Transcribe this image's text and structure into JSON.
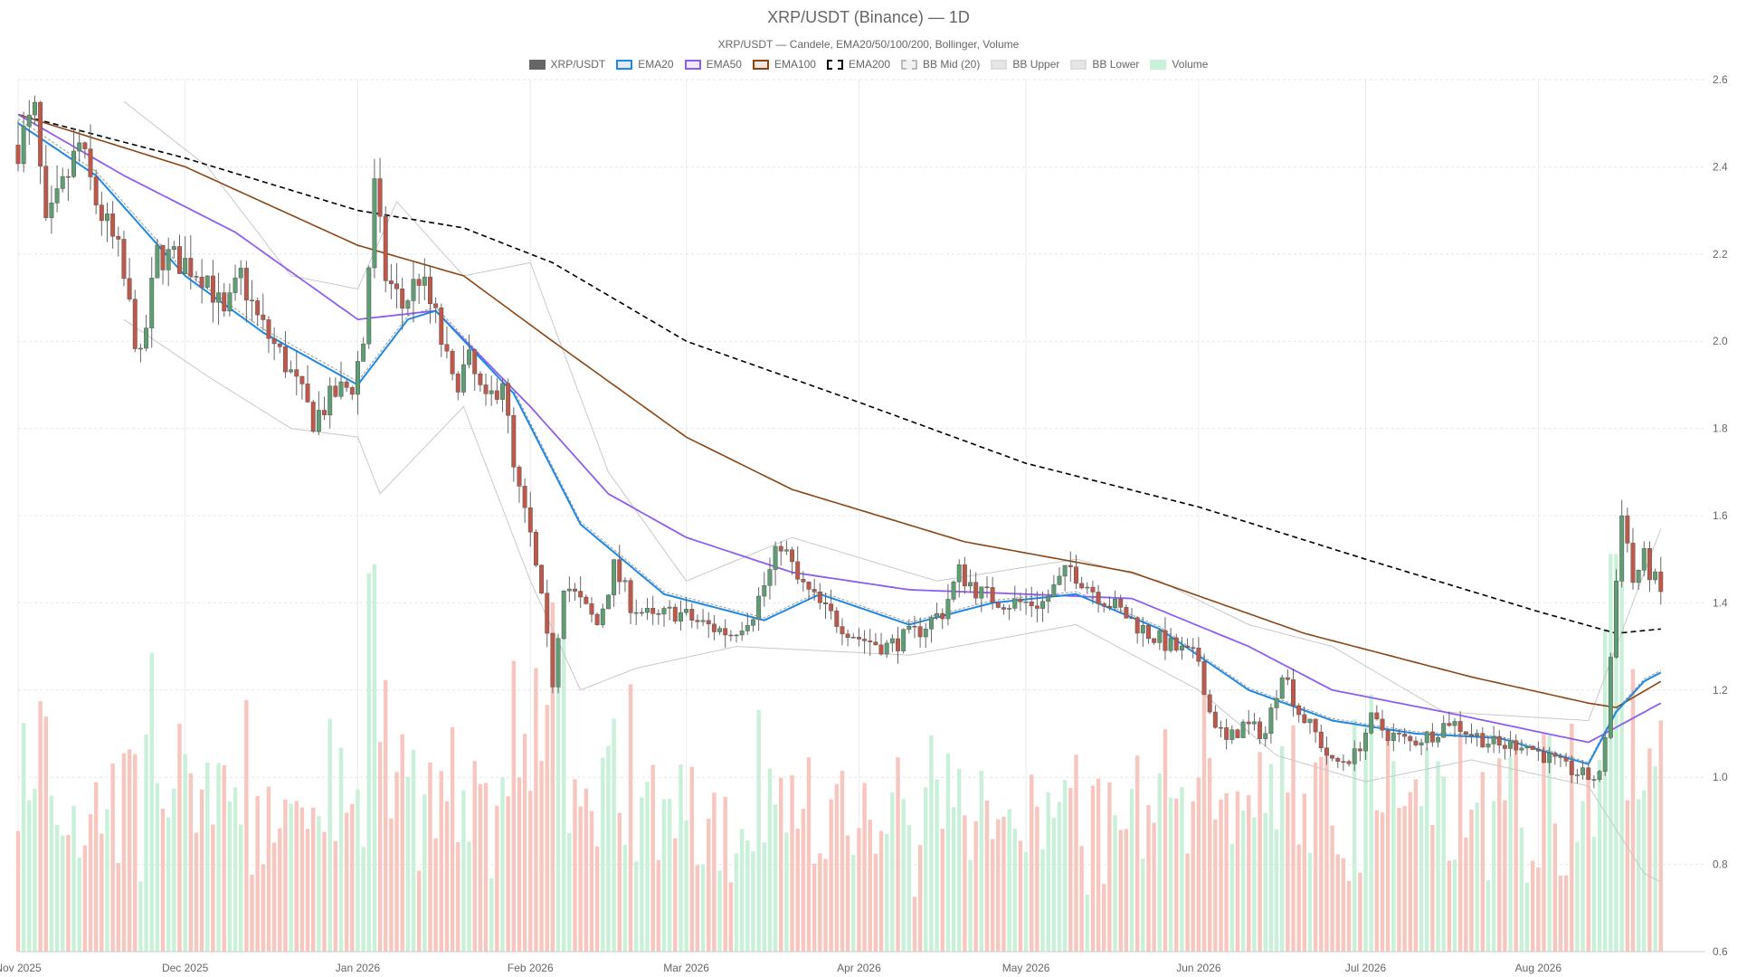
{
  "title": "XRP/USDT (Binance) — 1D",
  "subtitle": "XRP/USDT — Candele, EMA20/50/100/200, Bollinger, Volume",
  "legend": [
    {
      "label": "XRP/USDT",
      "fill": "#666666",
      "stroke": "#666666",
      "dash": false
    },
    {
      "label": "EMA20",
      "fill": "#e3eaf3",
      "stroke": "#1e88e5",
      "dash": false
    },
    {
      "label": "EMA50",
      "fill": "#efe9f8",
      "stroke": "#8e5cf0",
      "dash": false
    },
    {
      "label": "EMA100",
      "fill": "#f1e6e0",
      "stroke": "#8b4513",
      "dash": false
    },
    {
      "label": "EMA200",
      "fill": "#ffffff",
      "stroke": "#000000",
      "dash": true
    },
    {
      "label": "BB Mid (20)",
      "fill": "#f2f2f2",
      "stroke": "#bbbbbb",
      "dash": true
    },
    {
      "label": "BB Upper",
      "fill": "#e6e6e6",
      "stroke": "#dddddd",
      "dash": false
    },
    {
      "label": "BB Lower",
      "fill": "#e6e6e6",
      "stroke": "#dddddd",
      "dash": false
    },
    {
      "label": "Volume",
      "fill": "#c9f0d8",
      "stroke": "#c9f0d8",
      "dash": false
    }
  ],
  "colors": {
    "up": "#5e9e73",
    "down": "#c0584a",
    "vol_up": "#c9f0d8",
    "vol_down": "#f7c7bf",
    "grid": "#e6e6e6"
  },
  "chart_data": {
    "type": "candlestick",
    "x_start": "2025-11-01",
    "x_end": "2026-08-31",
    "ylim": [
      0.6,
      2.6
    ],
    "y_ticks": [
      "0.6",
      "0.8",
      "1.0",
      "1.2",
      "1.4",
      "1.6",
      "1.8",
      "2.0",
      "2.2",
      "2.4",
      "2.6"
    ],
    "x_ticks": [
      {
        "date": "2025-11-01",
        "label": "Nov 2025"
      },
      {
        "date": "2025-12-01",
        "label": "Dec 2025"
      },
      {
        "date": "2026-01-01",
        "label": "Jan 2026"
      },
      {
        "date": "2026-02-01",
        "label": "Feb 2026"
      },
      {
        "date": "2026-03-01",
        "label": "Mar 2026"
      },
      {
        "date": "2026-04-01",
        "label": "Apr 2026"
      },
      {
        "date": "2026-05-01",
        "label": "May 2026"
      },
      {
        "date": "2026-06-01",
        "label": "Jun 2026"
      },
      {
        "date": "2026-07-01",
        "label": "Jul 2026"
      },
      {
        "date": "2026-08-01",
        "label": "Aug 2026"
      }
    ],
    "close_anchors": [
      [
        "2025-11-01",
        2.45
      ],
      [
        "2025-11-04",
        2.52
      ],
      [
        "2025-11-06",
        2.25
      ],
      [
        "2025-11-09",
        2.35
      ],
      [
        "2025-11-12",
        2.45
      ],
      [
        "2025-11-15",
        2.32
      ],
      [
        "2025-11-19",
        2.2
      ],
      [
        "2025-11-23",
        1.95
      ],
      [
        "2025-11-26",
        2.2
      ],
      [
        "2025-12-01",
        2.18
      ],
      [
        "2025-12-05",
        2.15
      ],
      [
        "2025-12-08",
        2.05
      ],
      [
        "2025-12-11",
        2.15
      ],
      [
        "2025-12-14",
        2.05
      ],
      [
        "2025-12-19",
        1.95
      ],
      [
        "2025-12-24",
        1.82
      ],
      [
        "2025-12-28",
        1.88
      ],
      [
        "2025-12-31",
        1.9
      ],
      [
        "2026-01-02",
        2.0
      ],
      [
        "2026-01-04",
        2.35
      ],
      [
        "2026-01-06",
        2.15
      ],
      [
        "2026-01-09",
        2.08
      ],
      [
        "2026-01-12",
        2.15
      ],
      [
        "2026-01-15",
        2.05
      ],
      [
        "2026-01-18",
        1.9
      ],
      [
        "2026-01-21",
        1.95
      ],
      [
        "2026-01-24",
        1.85
      ],
      [
        "2026-01-27",
        1.92
      ],
      [
        "2026-01-29",
        1.7
      ],
      [
        "2026-02-01",
        1.55
      ],
      [
        "2026-02-03",
        1.4
      ],
      [
        "2026-02-05",
        1.22
      ],
      [
        "2026-02-07",
        1.45
      ],
      [
        "2026-02-10",
        1.4
      ],
      [
        "2026-02-13",
        1.35
      ],
      [
        "2026-02-16",
        1.48
      ],
      [
        "2026-02-19",
        1.4
      ],
      [
        "2026-02-23",
        1.36
      ],
      [
        "2026-02-27",
        1.38
      ],
      [
        "2026-03-04",
        1.35
      ],
      [
        "2026-03-09",
        1.33
      ],
      [
        "2026-03-13",
        1.38
      ],
      [
        "2026-03-16",
        1.47
      ],
      [
        "2026-03-18",
        1.54
      ],
      [
        "2026-03-21",
        1.45
      ],
      [
        "2026-03-26",
        1.38
      ],
      [
        "2026-04-01",
        1.32
      ],
      [
        "2026-04-06",
        1.3
      ],
      [
        "2026-04-11",
        1.33
      ],
      [
        "2026-04-16",
        1.38
      ],
      [
        "2026-04-19",
        1.47
      ],
      [
        "2026-04-23",
        1.42
      ],
      [
        "2026-04-28",
        1.4
      ],
      [
        "2026-05-04",
        1.4
      ],
      [
        "2026-05-09",
        1.48
      ],
      [
        "2026-05-13",
        1.43
      ],
      [
        "2026-05-18",
        1.38
      ],
      [
        "2026-05-23",
        1.33
      ],
      [
        "2026-05-27",
        1.3
      ],
      [
        "2026-06-01",
        1.27
      ],
      [
        "2026-06-03",
        1.15
      ],
      [
        "2026-06-06",
        1.08
      ],
      [
        "2026-06-09",
        1.12
      ],
      [
        "2026-06-13",
        1.1
      ],
      [
        "2026-06-16",
        1.25
      ],
      [
        "2026-06-19",
        1.15
      ],
      [
        "2026-06-22",
        1.1
      ],
      [
        "2026-06-25",
        1.03
      ],
      [
        "2026-06-29",
        1.05
      ],
      [
        "2026-07-02",
        1.13
      ],
      [
        "2026-07-05",
        1.1
      ],
      [
        "2026-07-09",
        1.08
      ],
      [
        "2026-07-13",
        1.1
      ],
      [
        "2026-07-16",
        1.13
      ],
      [
        "2026-07-20",
        1.1
      ],
      [
        "2026-07-25",
        1.07
      ],
      [
        "2026-07-29",
        1.08
      ],
      [
        "2026-08-02",
        1.05
      ],
      [
        "2026-08-06",
        1.02
      ],
      [
        "2026-08-10",
        1.0
      ],
      [
        "2026-08-12",
        1.0
      ],
      [
        "2026-08-13",
        1.1
      ],
      [
        "2026-08-15",
        1.45
      ],
      [
        "2026-08-16",
        1.62
      ],
      [
        "2026-08-18",
        1.45
      ],
      [
        "2026-08-20",
        1.5
      ],
      [
        "2026-08-23",
        1.42
      ]
    ],
    "ema20_anchors": [
      [
        "2025-11-01",
        2.5
      ],
      [
        "2025-11-15",
        2.38
      ],
      [
        "2025-12-01",
        2.15
      ],
      [
        "2025-12-15",
        2.02
      ],
      [
        "2026-01-01",
        1.9
      ],
      [
        "2026-01-10",
        2.05
      ],
      [
        "2026-01-15",
        2.07
      ],
      [
        "2026-01-29",
        1.88
      ],
      [
        "2026-02-10",
        1.58
      ],
      [
        "2026-02-25",
        1.42
      ],
      [
        "2026-03-15",
        1.36
      ],
      [
        "2026-03-25",
        1.42
      ],
      [
        "2026-04-10",
        1.35
      ],
      [
        "2026-04-25",
        1.4
      ],
      [
        "2026-05-10",
        1.42
      ],
      [
        "2026-05-25",
        1.34
      ],
      [
        "2026-06-10",
        1.2
      ],
      [
        "2026-06-25",
        1.13
      ],
      [
        "2026-07-10",
        1.1
      ],
      [
        "2026-07-25",
        1.09
      ],
      [
        "2026-08-10",
        1.03
      ],
      [
        "2026-08-15",
        1.15
      ],
      [
        "2026-08-20",
        1.22
      ],
      [
        "2026-08-23",
        1.24
      ]
    ],
    "ema50_anchors": [
      [
        "2025-11-01",
        2.52
      ],
      [
        "2025-11-20",
        2.38
      ],
      [
        "2025-12-10",
        2.25
      ],
      [
        "2026-01-01",
        2.05
      ],
      [
        "2026-01-15",
        2.07
      ],
      [
        "2026-02-01",
        1.85
      ],
      [
        "2026-02-15",
        1.65
      ],
      [
        "2026-03-01",
        1.55
      ],
      [
        "2026-03-20",
        1.47
      ],
      [
        "2026-04-10",
        1.43
      ],
      [
        "2026-05-01",
        1.42
      ],
      [
        "2026-05-20",
        1.41
      ],
      [
        "2026-06-10",
        1.3
      ],
      [
        "2026-06-25",
        1.2
      ],
      [
        "2026-07-15",
        1.15
      ],
      [
        "2026-08-10",
        1.08
      ],
      [
        "2026-08-23",
        1.17
      ]
    ],
    "ema100_anchors": [
      [
        "2025-11-01",
        2.52
      ],
      [
        "2025-12-01",
        2.4
      ],
      [
        "2026-01-01",
        2.22
      ],
      [
        "2026-01-20",
        2.15
      ],
      [
        "2026-02-05",
        2.0
      ],
      [
        "2026-03-01",
        1.78
      ],
      [
        "2026-03-20",
        1.66
      ],
      [
        "2026-04-20",
        1.54
      ],
      [
        "2026-05-20",
        1.47
      ],
      [
        "2026-06-20",
        1.33
      ],
      [
        "2026-07-20",
        1.23
      ],
      [
        "2026-08-10",
        1.17
      ],
      [
        "2026-08-15",
        1.16
      ],
      [
        "2026-08-23",
        1.22
      ]
    ],
    "ema200_anchors": [
      [
        "2025-11-01",
        2.52
      ],
      [
        "2025-12-01",
        2.42
      ],
      [
        "2026-01-01",
        2.3
      ],
      [
        "2026-01-20",
        2.26
      ],
      [
        "2026-02-05",
        2.18
      ],
      [
        "2026-03-01",
        2.0
      ],
      [
        "2026-04-01",
        1.86
      ],
      [
        "2026-05-01",
        1.72
      ],
      [
        "2026-06-01",
        1.62
      ],
      [
        "2026-07-01",
        1.5
      ],
      [
        "2026-08-01",
        1.38
      ],
      [
        "2026-08-15",
        1.33
      ],
      [
        "2026-08-23",
        1.34
      ]
    ],
    "bb_upper_anchors": [
      [
        "2025-11-20",
        2.55
      ],
      [
        "2025-12-05",
        2.4
      ],
      [
        "2025-12-20",
        2.15
      ],
      [
        "2026-01-01",
        2.12
      ],
      [
        "2026-01-08",
        2.32
      ],
      [
        "2026-01-20",
        2.15
      ],
      [
        "2026-02-01",
        2.18
      ],
      [
        "2026-02-15",
        1.7
      ],
      [
        "2026-03-01",
        1.45
      ],
      [
        "2026-03-20",
        1.55
      ],
      [
        "2026-04-15",
        1.45
      ],
      [
        "2026-05-10",
        1.5
      ],
      [
        "2026-05-25",
        1.45
      ],
      [
        "2026-06-10",
        1.35
      ],
      [
        "2026-06-25",
        1.3
      ],
      [
        "2026-07-15",
        1.15
      ],
      [
        "2026-08-10",
        1.13
      ],
      [
        "2026-08-23",
        1.57
      ]
    ],
    "bb_lower_anchors": [
      [
        "2025-11-20",
        2.05
      ],
      [
        "2025-12-05",
        1.92
      ],
      [
        "2025-12-20",
        1.8
      ],
      [
        "2026-01-01",
        1.78
      ],
      [
        "2026-01-05",
        1.65
      ],
      [
        "2026-01-20",
        1.85
      ],
      [
        "2026-02-01",
        1.45
      ],
      [
        "2026-02-10",
        1.2
      ],
      [
        "2026-02-20",
        1.25
      ],
      [
        "2026-03-10",
        1.3
      ],
      [
        "2026-04-10",
        1.28
      ],
      [
        "2026-05-10",
        1.35
      ],
      [
        "2026-06-01",
        1.2
      ],
      [
        "2026-06-15",
        1.05
      ],
      [
        "2026-07-01",
        0.99
      ],
      [
        "2026-07-20",
        1.04
      ],
      [
        "2026-08-10",
        0.98
      ],
      [
        "2026-08-20",
        0.78
      ],
      [
        "2026-08-23",
        0.76
      ]
    ],
    "volume_max": 2.0
  }
}
